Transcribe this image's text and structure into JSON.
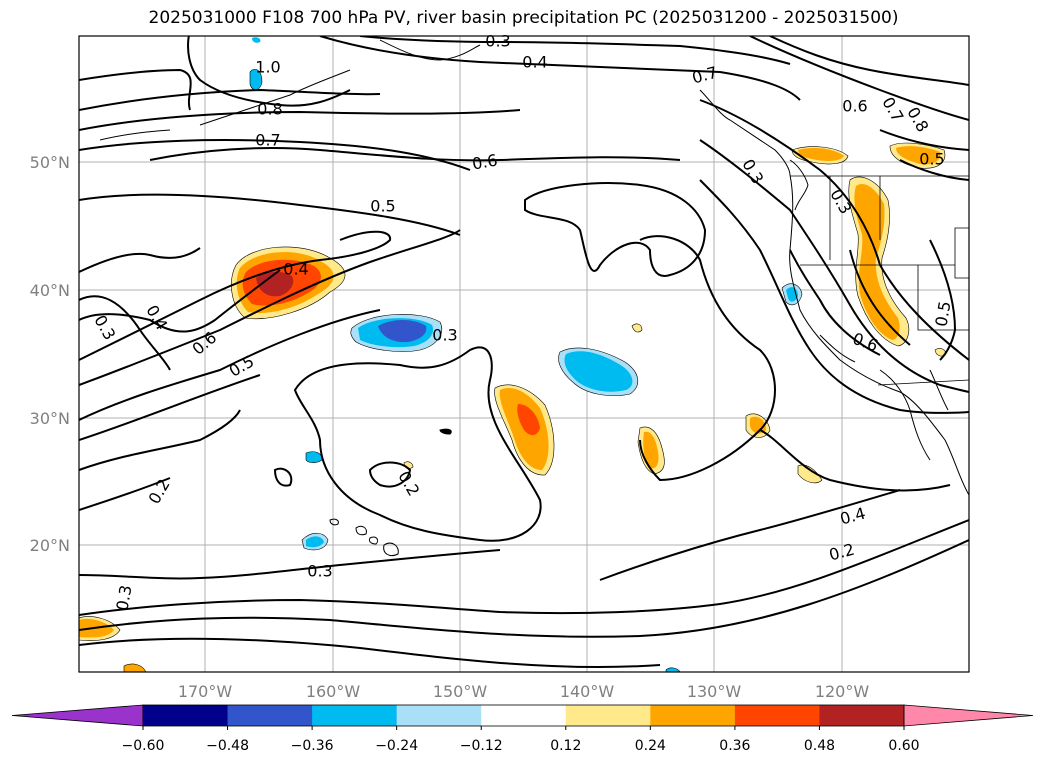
{
  "title": "2025031000 F108 700 hPa PV, river basin precipitation PC (2025031200 - 2025031500)",
  "longitude_labels": [
    "170°W",
    "160°W",
    "150°W",
    "140°W",
    "130°W",
    "120°W"
  ],
  "latitude_labels": [
    "50°N",
    "40°N",
    "30°N",
    "20°N"
  ],
  "colorbar": {
    "colors": [
      "#9933cc",
      "#00008b",
      "#3355cc",
      "#00bbf0",
      "#aadff8",
      "#ffffff",
      "#ffe98a",
      "#ffa500",
      "#ff4500",
      "#b22222",
      "#ff88aa"
    ],
    "tick_labels": [
      "−0.60",
      "−0.48",
      "−0.36",
      "−0.24",
      "−0.12",
      "0.12",
      "0.24",
      "0.36",
      "0.48",
      "0.60"
    ]
  },
  "contour_labels": [
    {
      "text": "0.3",
      "rot": 0
    },
    {
      "text": "0.4",
      "rot": 0
    },
    {
      "text": "1.0",
      "rot": 0
    },
    {
      "text": "0.8",
      "rot": 0
    },
    {
      "text": "0.7",
      "rot": 0
    },
    {
      "text": "0.6",
      "rot": -10
    },
    {
      "text": "0.5",
      "rot": 0
    },
    {
      "text": "0.4",
      "rot": 0
    },
    {
      "text": "0.3",
      "rot": 60
    },
    {
      "text": "0.4",
      "rot": 60
    },
    {
      "text": "0.6",
      "rot": -40
    },
    {
      "text": "0.5",
      "rot": -30
    },
    {
      "text": "0.3",
      "rot": 0
    },
    {
      "text": "0.2",
      "rot": -60
    },
    {
      "text": "0.2",
      "rot": 60
    },
    {
      "text": "0.3",
      "rot": 0
    },
    {
      "text": "0.3",
      "rot": -80
    },
    {
      "text": "0.4",
      "rot": -15
    },
    {
      "text": "0.2",
      "rot": -15
    },
    {
      "text": "0.7",
      "rot": -15
    },
    {
      "text": "0.6",
      "rot": 0
    },
    {
      "text": "0.7",
      "rot": 60
    },
    {
      "text": "0.8",
      "rot": 60
    },
    {
      "text": "0.5",
      "rot": 0
    },
    {
      "text": "0.3",
      "rot": 60
    },
    {
      "text": "0.3",
      "rot": 60
    },
    {
      "text": "0.6",
      "rot": 20
    },
    {
      "text": "0.5",
      "rot": -80
    }
  ]
}
